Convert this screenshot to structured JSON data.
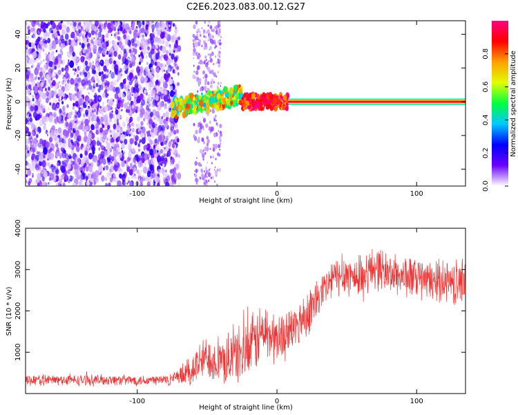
{
  "figure": {
    "title": "C2E6.2023.083.00.12.G27"
  },
  "chart_data": [
    {
      "type": "heatmap",
      "name": "spectrogram",
      "xlabel": "Height of straight line (km)",
      "ylabel": "Frequency (Hz)",
      "xlim": [
        -180,
        135
      ],
      "ylim": [
        -50,
        48
      ],
      "xticks": [
        -100,
        0,
        100
      ],
      "yticks": [
        -40,
        -20,
        0,
        20,
        40
      ],
      "colorbar": {
        "label": "Normalized spectral amplitude",
        "range": [
          0,
          1
        ],
        "ticks": [
          0.0,
          0.2,
          0.4,
          0.6,
          0.8
        ],
        "colormap": [
          "#ffffff",
          "#6a00ff",
          "#0000ff",
          "#00c8ff",
          "#00ff40",
          "#e0ff00",
          "#ffa000",
          "#ff0000",
          "#ff0080"
        ]
      },
      "regions": [
        {
          "x_range": [
            -180,
            -70
          ],
          "freq_range": [
            -50,
            48
          ],
          "amplitude": 0.05,
          "pattern": "noise"
        },
        {
          "x_range": [
            -60,
            -40
          ],
          "freq_range": [
            -50,
            48
          ],
          "amplitude": 0.03,
          "pattern": "faint noise"
        },
        {
          "x_range": [
            -75,
            -25
          ],
          "freq_range": [
            -10,
            10
          ],
          "amplitude": 0.35,
          "pattern": "scatter"
        },
        {
          "x_range": [
            -25,
            8
          ],
          "freq_range": [
            -3,
            3
          ],
          "amplitude": 0.75,
          "pattern": "signal"
        },
        {
          "x_range": [
            8,
            135
          ],
          "freq_range": [
            -1,
            1
          ],
          "amplitude": 0.95,
          "pattern": "steady signal"
        }
      ]
    },
    {
      "type": "line",
      "name": "snr",
      "xlabel": "Height of straight line (km)",
      "ylabel": "SNR (10 * v/v)",
      "xlim": [
        -180,
        135
      ],
      "ylim": [
        0,
        4000
      ],
      "xticks": [
        -100,
        0,
        100
      ],
      "yticks": [
        1000,
        2000,
        3000,
        4000
      ],
      "color": "#ee3333",
      "series": [
        {
          "x": [
            -180,
            -160,
            -140,
            -120,
            -100,
            -80,
            -70,
            -60,
            -50,
            -40,
            -30,
            -20,
            -10,
            0,
            10,
            20,
            30,
            40,
            50,
            60,
            70,
            80,
            90,
            100,
            110,
            120,
            130,
            135
          ],
          "values": [
            330,
            330,
            320,
            330,
            320,
            330,
            380,
            600,
            900,
            750,
            900,
            1050,
            1500,
            1300,
            1500,
            1900,
            2300,
            2800,
            2900,
            2750,
            3100,
            2900,
            2850,
            2800,
            2700,
            2750,
            2650,
            2800
          ],
          "noise": [
            150,
            140,
            140,
            140,
            140,
            150,
            220,
            500,
            550,
            600,
            700,
            800,
            800,
            650,
            600,
            600,
            600,
            500,
            550,
            550,
            600,
            500,
            550,
            550,
            500,
            550,
            600,
            650
          ]
        }
      ]
    }
  ]
}
